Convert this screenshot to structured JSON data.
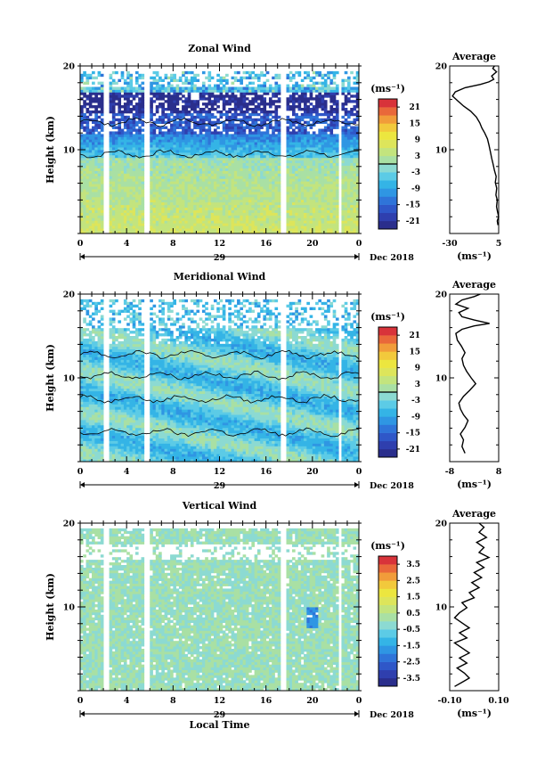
{
  "chart_data": [
    {
      "type": "heatmap",
      "title": "Zonal Wind",
      "ylabel": "Height (km)",
      "xlabel": "",
      "x_range_hours": [
        0,
        24
      ],
      "y_range_km": [
        0,
        20
      ],
      "x_ticks": [
        "0",
        "4",
        "8",
        "12",
        "16",
        "20",
        "0"
      ],
      "y_ticks": [
        "10",
        "20"
      ],
      "date_day": "29",
      "date_month": "Dec 2018",
      "colorbar": {
        "unit": "(ms⁻¹)",
        "range": [
          -24,
          24
        ],
        "ticks": [
          "21",
          "15",
          "9",
          "3",
          "-3",
          "-9",
          "-15",
          "-21"
        ],
        "ticks_val": [
          21,
          15,
          9,
          3,
          -3,
          -9,
          -15,
          -21
        ],
        "zero_line": true
      },
      "profile": {
        "title": "Average",
        "xlabel": "(ms⁻¹)",
        "x_range": [
          -30,
          5
        ],
        "x_ticks": [
          "-30",
          "5"
        ],
        "x_ticks_val": [
          -30,
          5
        ],
        "y_ticks": [
          "10",
          "20"
        ],
        "points": [
          [
            4.5,
            1.0
          ],
          [
            4.0,
            1.5
          ],
          [
            5.0,
            2.0
          ],
          [
            4.2,
            2.6
          ],
          [
            3.5,
            3.2
          ],
          [
            4.0,
            4.0
          ],
          [
            3.0,
            4.6
          ],
          [
            3.6,
            5.4
          ],
          [
            2.6,
            6.1
          ],
          [
            3.2,
            6.8
          ],
          [
            2.0,
            7.5
          ],
          [
            1.0,
            8.3
          ],
          [
            0.0,
            9.0
          ],
          [
            -1.0,
            9.8
          ],
          [
            -2.0,
            10.6
          ],
          [
            -3.0,
            11.3
          ],
          [
            -5.0,
            12.0
          ],
          [
            -7.0,
            12.6
          ],
          [
            -8.5,
            13.2
          ],
          [
            -11.0,
            13.9
          ],
          [
            -15.0,
            14.6
          ],
          [
            -20.0,
            15.2
          ],
          [
            -24.0,
            15.8
          ],
          [
            -28.0,
            16.4
          ],
          [
            -26.0,
            16.9
          ],
          [
            -19.0,
            17.4
          ],
          [
            -8.0,
            17.8
          ],
          [
            -2.0,
            18.1
          ],
          [
            1.5,
            18.4
          ],
          [
            0.0,
            18.8
          ],
          [
            3.5,
            19.3
          ],
          [
            0.8,
            19.7
          ],
          [
            2.0,
            20.0
          ]
        ]
      }
    },
    {
      "type": "heatmap",
      "title": "Meridional Wind",
      "ylabel": "Height (km)",
      "xlabel": "",
      "x_range_hours": [
        0,
        24
      ],
      "y_range_km": [
        0,
        20
      ],
      "x_ticks": [
        "0",
        "4",
        "8",
        "12",
        "16",
        "20",
        "0"
      ],
      "y_ticks": [
        "10",
        "20"
      ],
      "date_day": "29",
      "date_month": "Dec 2018",
      "colorbar": {
        "unit": "(ms⁻¹)",
        "range": [
          -24,
          24
        ],
        "ticks": [
          "21",
          "15",
          "9",
          "3",
          "-3",
          "-9",
          "-15",
          "-21"
        ],
        "ticks_val": [
          21,
          15,
          9,
          3,
          -3,
          -9,
          -15,
          -21
        ],
        "zero_line": true
      },
      "profile": {
        "title": "Average",
        "xlabel": "(ms⁻¹)",
        "x_range": [
          -8,
          8
        ],
        "x_ticks": [
          "-8",
          "8"
        ],
        "x_ticks_val": [
          -8,
          8
        ],
        "y_ticks": [
          "10",
          "20"
        ],
        "points": [
          [
            -3.0,
            1.0
          ],
          [
            -4.0,
            1.8
          ],
          [
            -3.5,
            2.6
          ],
          [
            -4.5,
            3.3
          ],
          [
            -3.0,
            4.1
          ],
          [
            -2.0,
            4.9
          ],
          [
            -3.5,
            5.6
          ],
          [
            -4.5,
            6.3
          ],
          [
            -5.0,
            7.0
          ],
          [
            -3.5,
            7.8
          ],
          [
            -1.5,
            8.5
          ],
          [
            0.5,
            9.3
          ],
          [
            -1.0,
            10.0
          ],
          [
            -2.5,
            10.8
          ],
          [
            -3.5,
            11.5
          ],
          [
            -4.0,
            12.3
          ],
          [
            -3.0,
            13.0
          ],
          [
            -4.2,
            13.8
          ],
          [
            -5.5,
            14.5
          ],
          [
            -6.0,
            15.3
          ],
          [
            -4.0,
            15.8
          ],
          [
            0.0,
            16.2
          ],
          [
            5.0,
            16.5
          ],
          [
            0.0,
            16.9
          ],
          [
            -4.0,
            17.3
          ],
          [
            -5.0,
            17.8
          ],
          [
            -2.0,
            18.3
          ],
          [
            -6.0,
            18.8
          ],
          [
            -4.0,
            19.3
          ],
          [
            0.0,
            19.7
          ],
          [
            2.0,
            20.0
          ]
        ]
      }
    },
    {
      "type": "heatmap",
      "title": "Vertical Wind",
      "ylabel": "Height (km)",
      "xlabel": "Local Time",
      "x_range_hours": [
        0,
        24
      ],
      "y_range_km": [
        0,
        20
      ],
      "x_ticks": [
        "0",
        "4",
        "8",
        "12",
        "16",
        "20",
        "0"
      ],
      "y_ticks": [
        "10",
        "20"
      ],
      "date_day": "29",
      "date_month": "Dec 2018",
      "colorbar": {
        "unit": "(ms⁻¹)",
        "range": [
          -4,
          4
        ],
        "ticks": [
          "3.5",
          "2.5",
          "1.5",
          "0.5",
          "-0.5",
          "-1.5",
          "-2.5",
          "-3.5"
        ],
        "ticks_val": [
          3.5,
          2.5,
          1.5,
          0.5,
          -0.5,
          -1.5,
          -2.5,
          -3.5
        ],
        "zero_line": false
      },
      "profile": {
        "title": "Average",
        "xlabel": "(ms⁻¹)",
        "x_range": [
          -0.1,
          0.1
        ],
        "x_ticks": [
          "-0.10",
          "0.10"
        ],
        "x_ticks_val": [
          -0.1,
          0.1
        ],
        "y_ticks": [
          "10",
          "20"
        ],
        "points": [
          [
            -0.08,
            0.5
          ],
          [
            -0.05,
            1.0
          ],
          [
            -0.02,
            1.5
          ],
          [
            -0.04,
            2.1
          ],
          [
            -0.07,
            2.7
          ],
          [
            -0.03,
            3.3
          ],
          [
            -0.06,
            3.9
          ],
          [
            -0.02,
            4.5
          ],
          [
            -0.05,
            5.1
          ],
          [
            -0.08,
            5.7
          ],
          [
            -0.03,
            6.3
          ],
          [
            -0.06,
            6.9
          ],
          [
            -0.02,
            7.5
          ],
          [
            -0.05,
            8.1
          ],
          [
            -0.08,
            8.7
          ],
          [
            -0.06,
            9.3
          ],
          [
            -0.03,
            9.9
          ],
          [
            -0.05,
            10.5
          ],
          [
            0.0,
            11.1
          ],
          [
            -0.02,
            11.7
          ],
          [
            0.02,
            12.3
          ],
          [
            -0.01,
            12.9
          ],
          [
            0.03,
            13.5
          ],
          [
            0.0,
            14.1
          ],
          [
            0.04,
            14.7
          ],
          [
            0.01,
            15.3
          ],
          [
            0.06,
            15.9
          ],
          [
            0.02,
            16.5
          ],
          [
            0.04,
            17.1
          ],
          [
            0.01,
            17.7
          ],
          [
            0.05,
            18.3
          ],
          [
            0.02,
            18.9
          ],
          [
            0.04,
            19.5
          ],
          [
            0.02,
            20.0
          ]
        ]
      }
    }
  ]
}
